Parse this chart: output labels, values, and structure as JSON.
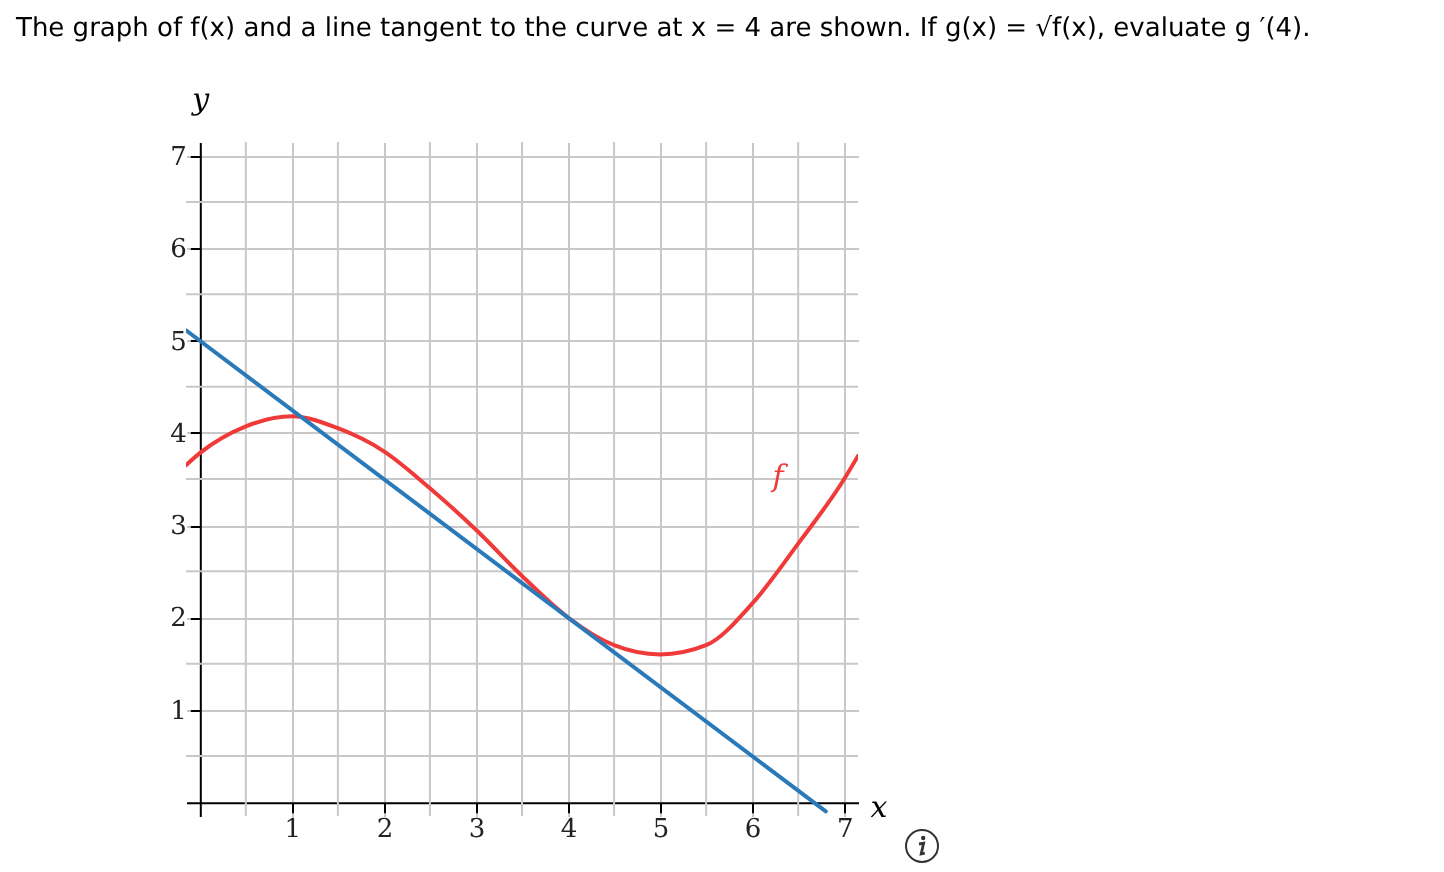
{
  "chart_data": {
    "type": "line",
    "title": "The graph of f(x) and a line tangent to the curve at x = 4 are shown. If g(x) = √f(x), evaluate g ′(4).",
    "xlabel": "x",
    "ylabel": "y",
    "series": [
      {
        "name": "f",
        "color": "#f03a3a",
        "x": [
          -0.15,
          0,
          0.5,
          1,
          1.5,
          2,
          2.5,
          3,
          3.5,
          4,
          4.5,
          5,
          5.5,
          6,
          6.5,
          7,
          7.15
        ],
        "values": [
          3.65,
          3.78,
          4.07,
          4.18,
          4.05,
          3.8,
          3.4,
          2.95,
          2.45,
          2.0,
          1.7,
          1.6,
          1.7,
          2.15,
          2.8,
          3.5,
          3.75
        ]
      },
      {
        "color": "#2a7ab9",
        "x": [
          -0.15,
          6.8
        ],
        "values": [
          5.11,
          -0.1
        ]
      }
    ],
    "xlim": [
      -0.15,
      7.15
    ],
    "ylim": [
      -0.15,
      7.15
    ],
    "xticks": [
      {
        "value": 0.5,
        "label": null
      },
      1,
      {
        "value": 1.5,
        "label": null
      },
      2,
      {
        "value": 2.5,
        "label": null
      },
      3,
      {
        "value": 3.5,
        "label": null
      },
      4,
      {
        "value": 4.5,
        "label": null
      },
      5,
      {
        "value": 5.5,
        "label": null
      },
      6,
      {
        "value": 6.5,
        "label": null
      },
      7
    ],
    "yticks": [
      {
        "value": 0.5,
        "label": null
      },
      1,
      {
        "value": 1.5,
        "label": null
      },
      2,
      {
        "value": 2.5,
        "label": null
      },
      3,
      {
        "value": 3.5,
        "label": null
      },
      4,
      {
        "value": 4.5,
        "label": null
      },
      5,
      {
        "value": 5.5,
        "label": null
      },
      6,
      {
        "value": 6.5,
        "label": null
      },
      7
    ],
    "grid": true,
    "marker": "none",
    "line_style": "solid"
  }
}
